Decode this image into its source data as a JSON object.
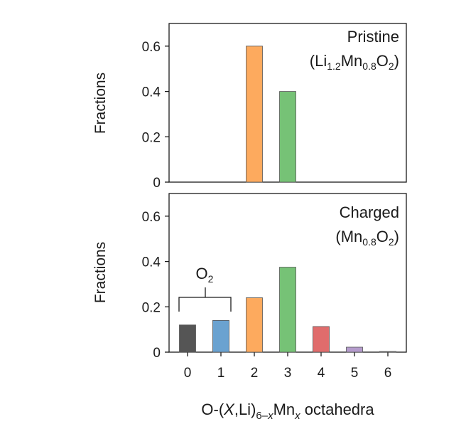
{
  "chart_data": [
    {
      "type": "bar",
      "panel": "top",
      "annotation_line1": "Pristine",
      "annotation_line2": {
        "prefix": "(Li",
        "sub1": "1.2",
        "mid": "Mn",
        "sub2": "0.8",
        "mid2": "O",
        "sub3": "2",
        "suffix": ")"
      },
      "ylabel": "Fractions",
      "ylim": [
        0,
        0.7
      ],
      "yticks": [
        0,
        0.2,
        0.4,
        0.6
      ],
      "ytick_labels": [
        "0",
        "0.2",
        "0.4",
        "0.6"
      ],
      "categories": [
        "0",
        "1",
        "2",
        "3",
        "4",
        "5",
        "6"
      ],
      "values": [
        0,
        0,
        0.6,
        0.4,
        0,
        0,
        0
      ],
      "colors": [
        "#555555",
        "#6aa2d0",
        "#fdaa5e",
        "#76c276",
        "#e06c6c",
        "#b49bcc",
        "#999999"
      ]
    },
    {
      "type": "bar",
      "panel": "bottom",
      "annotation_line1": "Charged",
      "annotation_line2": {
        "prefix": "(Mn",
        "sub1": "0.8",
        "mid": "O",
        "sub2": "2",
        "suffix": ")"
      },
      "bracket_label": {
        "base": "O",
        "sub": "2"
      },
      "ylabel": "Fractions",
      "ylim": [
        0,
        0.7
      ],
      "yticks": [
        0,
        0.2,
        0.4,
        0.6
      ],
      "ytick_labels": [
        "0",
        "0.2",
        "0.4",
        "0.6"
      ],
      "categories": [
        "0",
        "1",
        "2",
        "3",
        "4",
        "5",
        "6"
      ],
      "values": [
        0.12,
        0.14,
        0.24,
        0.375,
        0.113,
        0.022,
        0.003
      ],
      "colors": [
        "#555555",
        "#6aa2d0",
        "#fdaa5e",
        "#76c276",
        "#e06c6c",
        "#b49bcc",
        "#999999"
      ]
    }
  ],
  "xlabel": {
    "p1": "O-(",
    "p2": "X",
    "p3": ",Li)",
    "sub1": "6–",
    "sub2": "x",
    "p4": "Mn",
    "sub3": "x",
    "p5": " octahedra"
  }
}
